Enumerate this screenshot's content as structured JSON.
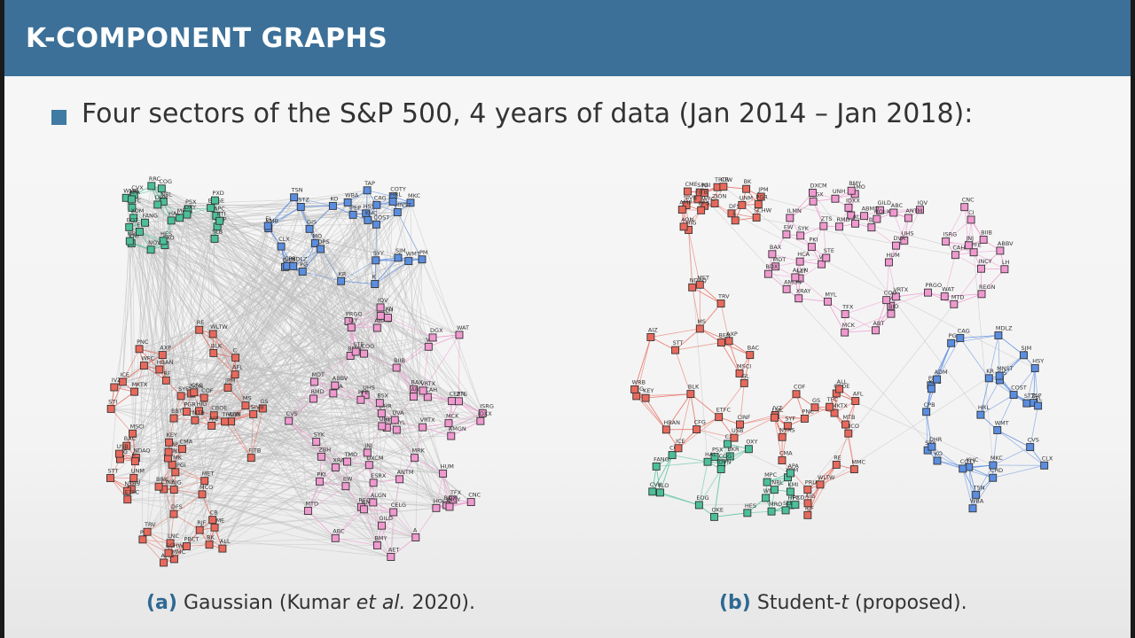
{
  "slide": {
    "title": "K-COMPONENT GRAPHS",
    "bullet": "Four sectors of the S&P 500, 4 years of data (Jan 2014 – Jan 2018):"
  },
  "colors": {
    "header": "#3c7098",
    "financials": "#e8695c",
    "energy": "#4cbf9a",
    "consumer_staples": "#5b8ee0",
    "health_care": "#ef99cf",
    "cross_edges": "#bdbdbd"
  },
  "graphs": [
    {
      "id": "a",
      "caption_label": "(a)",
      "caption_text": "Gaussian (Kumar et al. 2020).",
      "caption_prefix": "Gaussian (Kumar ",
      "caption_italic": "et al.",
      "caption_suffix": " 2020).",
      "labels": {
        "energy": [
          "MPC",
          "HFC",
          "PSX",
          "XOM",
          "CVX",
          "COP",
          "OXY",
          "COG",
          "KMI",
          "MRO",
          "APC",
          "EOG",
          "CXO",
          "NBL",
          "SLB",
          "HAL",
          "FANG",
          "WMB",
          "FTI",
          "HES",
          "BHGE",
          "RRC",
          "DVN",
          "PXD",
          "EQT",
          "NOV",
          "APA"
        ],
        "consumer_staples": [
          "MO",
          "CLX",
          "KMB",
          "CHD",
          "PEP",
          "KO",
          "PG",
          "HSY",
          "SJM",
          "MKC",
          "GIS",
          "CPB",
          "CAG",
          "COTY",
          "EL",
          "TSN",
          "MDLZ",
          "KHC",
          "STZ",
          "WMT",
          "COST",
          "KR",
          "WBA",
          "SYY",
          "MNST",
          "TAP",
          "PM",
          "HRL",
          "K",
          "DPS"
        ],
        "health_care": [
          "PRGO",
          "MYL",
          "DHR",
          "DXCM",
          "CVS",
          "MCK",
          "ABC",
          "CAH",
          "ABMD",
          "XRAY",
          "ISRG",
          "BMD",
          "SYK",
          "EW",
          "CERN",
          "TFX",
          "STE",
          "BAX",
          "BDX",
          "MDT",
          "ZBH",
          "HCA",
          "UHS",
          "ESRX",
          "CI",
          "CNC",
          "AET",
          "HUM",
          "UNH",
          "ANTM",
          "BIIB",
          "AMGN",
          "ABBV",
          "LLY",
          "MRK",
          "PFE",
          "JNJ",
          "BMY",
          "GILD",
          "REGN",
          "ALXN",
          "INCY",
          "VRTX",
          "CELG",
          "WAT",
          "PKI",
          "TMO",
          "A",
          "IQV",
          "ILMN",
          "MTD",
          "HOLX",
          "IDXX",
          "ALGN",
          "COO",
          "VAR",
          "DGX",
          "LH",
          "ZTS",
          "DVA",
          "BSX",
          "ABT",
          "RMD",
          "VRTX"
        ],
        "financials": [
          "ICE",
          "CBOE",
          "CME",
          "NDAQ",
          "MKTX",
          "AXP",
          "DFS",
          "COF",
          "SYF",
          "MSCI",
          "SPGI",
          "MCO",
          "AON",
          "MMC",
          "WLTW",
          "AJG",
          "AFL",
          "AIZ",
          "MET",
          "PRU",
          "LNC",
          "PFG",
          "UNM",
          "TMK",
          "L",
          "CINF",
          "RE",
          "CB",
          "TRV",
          "ALL",
          "PGR",
          "HIG",
          "AIG",
          "BK",
          "STT",
          "NTRS",
          "BLK",
          "TROW",
          "BEN",
          "IVZ",
          "AMG",
          "AMP",
          "ETFC",
          "SCHW",
          "RJF",
          "GS",
          "MS",
          "JPM",
          "BAC",
          "C",
          "WFC",
          "USB",
          "PNC",
          "FITB",
          "KEY",
          "RF",
          "HBAN",
          "CMA",
          "ZION",
          "STI",
          "BBT",
          "CFG",
          "MTB",
          "SIVB",
          "PBCT",
          "BRK"
        ]
      }
    },
    {
      "id": "b",
      "caption_label": "(b)",
      "caption_text": "Student-t (proposed).",
      "caption_prefix": "Student-",
      "caption_italic": "t",
      "caption_suffix": " (proposed).",
      "labels": {
        "energy": [
          "VLO",
          "HFC",
          "MPC",
          "PSX",
          "BKR",
          "WMB",
          "OKE",
          "HAL",
          "KMI",
          "SLB",
          "COG",
          "XOM",
          "OXY",
          "CVX",
          "FANG",
          "PXD",
          "APA",
          "COP",
          "HES",
          "MRO",
          "DVN",
          "NBL",
          "EOG",
          "CXO"
        ],
        "consumer_staples": [
          "CLX",
          "PG",
          "PEP",
          "CHD",
          "KMB",
          "KO",
          "MKC",
          "HSY",
          "GIS",
          "CPB",
          "CAG",
          "SJM",
          "HRL",
          "KHC",
          "MNST",
          "TSN",
          "COTY",
          "STZ",
          "MDLZ",
          "ADM",
          "SYY",
          "DHR",
          "KR",
          "WBA",
          "WMT",
          "COST",
          "CVS",
          "TAP",
          "EL"
        ],
        "health_care": [
          "PKI",
          "TMO",
          "A",
          "WAT",
          "MRK",
          "PFE",
          "LLY",
          "JNJ",
          "ABT",
          "BMY",
          "AMGN",
          "MTD",
          "SYK",
          "MDT",
          "ABBV",
          "GILD",
          "BIIB",
          "BDX",
          "BAX",
          "REGN",
          "PRGO",
          "MYL",
          "INCY",
          "ALXN",
          "VAR",
          "BSX",
          "HOLX",
          "XRAY",
          "ZTS",
          "ILMN",
          "VRTX",
          "TFX",
          "ISRG",
          "STE",
          "EW",
          "BIO",
          "IQV",
          "RMD",
          "COO",
          "LH",
          "DGX",
          "HCA",
          "UHS",
          "DVA",
          "ALGN",
          "ABMD",
          "DXCM",
          "CAH",
          "ABC",
          "MCK",
          "ANTM",
          "CI",
          "CNC",
          "HUM",
          "UNH",
          "IDXX"
        ],
        "financials": [
          "ICE",
          "CBOE",
          "CME",
          "NDAQ",
          "MKTX",
          "SPGI",
          "MSCI",
          "MCO",
          "RF",
          "KEY",
          "CMA",
          "ZION",
          "HBAN",
          "TFC",
          "FITB",
          "CFG",
          "MTB",
          "SIVB",
          "USB",
          "PNC",
          "WFC",
          "BAC",
          "COF",
          "DFS",
          "AXP",
          "SYF",
          "JPM",
          "MS",
          "GS",
          "SCHW",
          "ETFC",
          "RJF",
          "BK",
          "STT",
          "NTRS",
          "AMP",
          "BEN",
          "IVZ",
          "TROW",
          "BLK",
          "LNC",
          "PFG",
          "MET",
          "PRU",
          "UNM",
          "GL",
          "AFL",
          "HIG",
          "AIZ",
          "MMC",
          "AON",
          "AJG",
          "WLTW",
          "L",
          "CINF",
          "RE",
          "CB",
          "TRV",
          "ALL",
          "PGR",
          "WRB",
          "AIG"
        ]
      }
    }
  ]
}
